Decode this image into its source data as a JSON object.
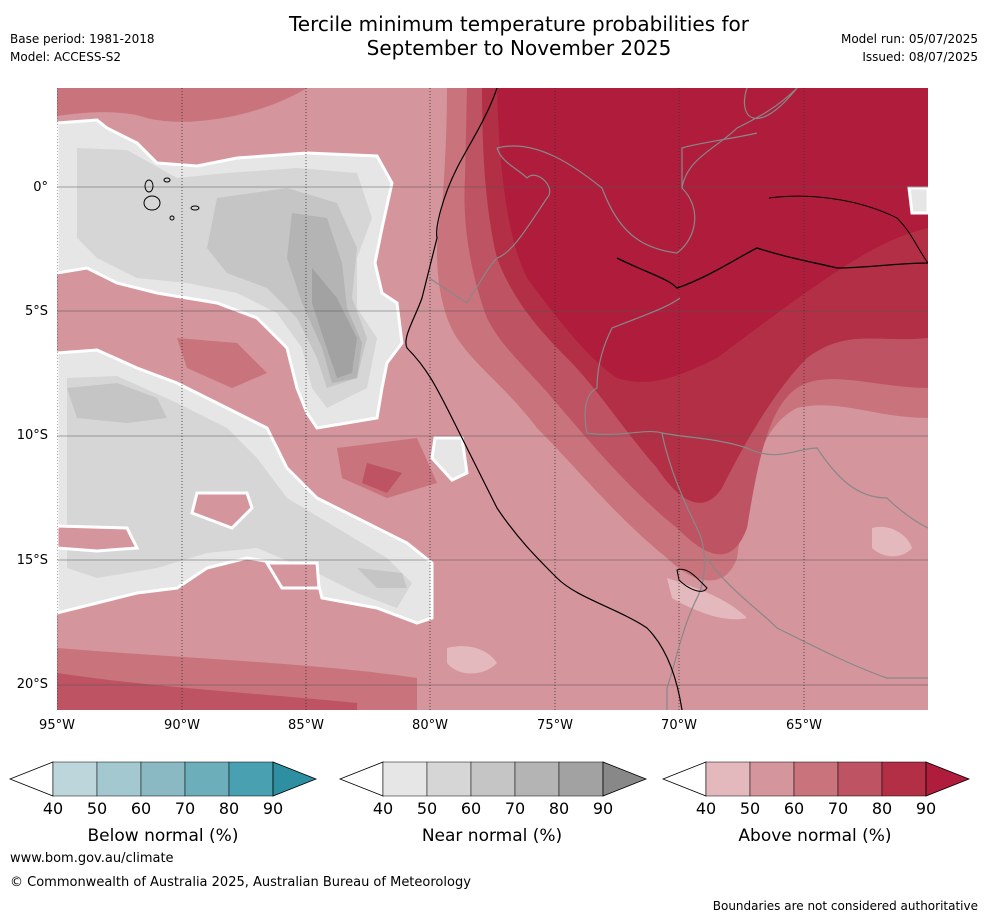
{
  "title": {
    "line1": "Tercile minimum temperature probabilities for",
    "line2": "September to November 2025"
  },
  "meta": {
    "base_period": "Base period: 1981-2018",
    "model": "Model: ACCESS-S2",
    "model_run": "Model run: 05/07/2025",
    "issued": "Issued: 08/07/2025"
  },
  "axes": {
    "lat_labels": [
      "0°",
      "5°S",
      "10°S",
      "15°S",
      "20°S"
    ],
    "lon_labels": [
      "95°W",
      "90°W",
      "85°W",
      "80°W",
      "75°W",
      "70°W",
      "65°W"
    ]
  },
  "colorbars": [
    {
      "label": "Below normal (%)",
      "ticks": [
        "40",
        "50",
        "60",
        "70",
        "80",
        "90"
      ],
      "colors": [
        "#ffffff",
        "#bdd6dc",
        "#a4c8d0",
        "#8ab9c4",
        "#6caeba",
        "#48a0b0",
        "#2e8fa2"
      ]
    },
    {
      "label": "Near normal (%)",
      "ticks": [
        "40",
        "50",
        "60",
        "70",
        "80",
        "90"
      ],
      "colors": [
        "#ffffff",
        "#e6e6e6",
        "#d6d6d6",
        "#c5c5c5",
        "#b4b4b4",
        "#a2a2a2",
        "#888888"
      ]
    },
    {
      "label": "Above normal (%)",
      "ticks": [
        "40",
        "50",
        "60",
        "70",
        "80",
        "90"
      ],
      "colors": [
        "#ffffff",
        "#e3b9be",
        "#d5959c",
        "#c9737c",
        "#be5363",
        "#b32f45",
        "#b01c3c"
      ]
    }
  ],
  "footer": {
    "site": "www.bom.gov.au/climate",
    "copyright": "© Commonwealth of Australia 2025, Australian Bureau of Meteorology",
    "disclaimer": "Boundaries are not considered authoritative"
  }
}
